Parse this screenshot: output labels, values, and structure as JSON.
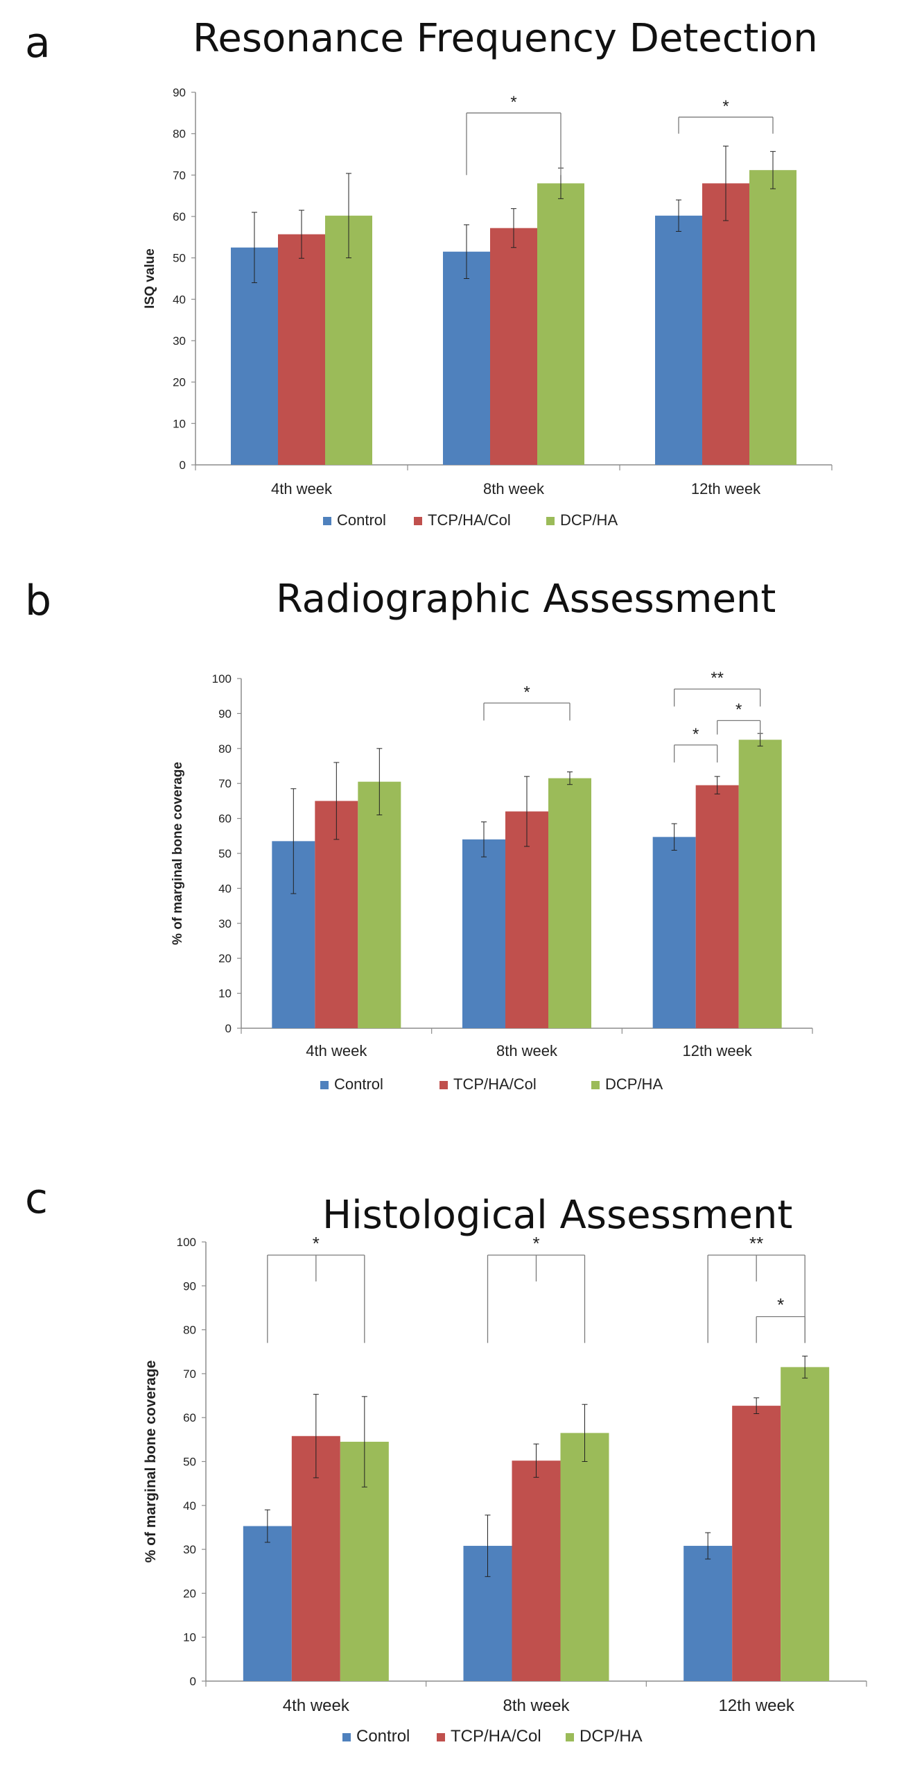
{
  "colors": {
    "Control": "#4F81BD",
    "TCP/HA/Col": "#C0504D",
    "DCP/HA": "#9BBB59"
  },
  "panels": [
    {
      "letter": "a",
      "title": "Resonance Frequency Detection",
      "chart_data": {
        "type": "bar",
        "title": "Resonance Frequency Detection",
        "xlabel": "",
        "ylabel": "ISQ value",
        "ylim": [
          0,
          90
        ],
        "yticks": [
          "0",
          "10",
          "20",
          "30",
          "40",
          "50",
          "60",
          "70",
          "80",
          "90"
        ],
        "categories": [
          "4th week",
          "8th week",
          "12th week"
        ],
        "series": [
          {
            "name": "Control",
            "values": [
              52.5,
              51.5,
              60.2
            ],
            "errors": [
              8.5,
              6.5,
              3.8
            ]
          },
          {
            "name": "TCP/HA/Col",
            "values": [
              55.7,
              57.2,
              68.0
            ],
            "errors": [
              5.8,
              4.7,
              9.0
            ]
          },
          {
            "name": "DCP/HA",
            "values": [
              60.2,
              68.0,
              71.2
            ],
            "errors": [
              10.2,
              3.7,
              4.5
            ]
          }
        ],
        "annotations": [
          {
            "label": "*",
            "category": 1,
            "from": 0,
            "to": 2,
            "level": 85,
            "drop_to": 70
          },
          {
            "label": "*",
            "category": 2,
            "from": 0,
            "to": 2,
            "level": 84,
            "drop_to": 80
          }
        ]
      }
    },
    {
      "letter": "b",
      "title": "Radiographic Assessment",
      "chart_data": {
        "type": "bar",
        "title": "Radiographic Assessment",
        "xlabel": "",
        "ylabel": "% of marginal bone coverage",
        "ylim": [
          0,
          100
        ],
        "yticks": [
          "0",
          "10",
          "20",
          "30",
          "40",
          "50",
          "60",
          "70",
          "80",
          "90",
          "100"
        ],
        "categories": [
          "4th week",
          "8th week",
          "12th week"
        ],
        "series": [
          {
            "name": "Control",
            "values": [
              53.5,
              54.0,
              54.7
            ],
            "errors": [
              15.0,
              5.0,
              3.8
            ]
          },
          {
            "name": "TCP/HA/Col",
            "values": [
              65.0,
              62.0,
              69.5
            ],
            "errors": [
              11.0,
              10.0,
              2.5
            ]
          },
          {
            "name": "DCP/HA",
            "values": [
              70.5,
              71.5,
              82.5
            ],
            "errors": [
              9.5,
              1.8,
              1.8
            ]
          }
        ],
        "annotations": [
          {
            "label": "*",
            "category": 1,
            "from": 0,
            "to": 2,
            "level": 93,
            "drop_to": 88
          },
          {
            "label": "**",
            "category": 2,
            "from": 0,
            "to": 2,
            "level": 97,
            "drop_to": 92
          },
          {
            "label": "*",
            "category": 2,
            "from": 1,
            "to": 2,
            "level": 88,
            "drop_to": 84
          },
          {
            "label": "*",
            "category": 2,
            "from": 0,
            "to": 1,
            "level": 81,
            "drop_to": 76
          }
        ]
      }
    },
    {
      "letter": "c",
      "title": "Histological Assessment",
      "chart_data": {
        "type": "bar",
        "title": "Histological Assessment",
        "xlabel": "",
        "ylabel": "% of marginal bone coverage",
        "ylim": [
          0,
          100
        ],
        "yticks": [
          "0",
          "10",
          "20",
          "30",
          "40",
          "50",
          "60",
          "70",
          "80",
          "90",
          "100"
        ],
        "categories": [
          "4th week",
          "8th week",
          "12th week"
        ],
        "series": [
          {
            "name": "Control",
            "values": [
              35.3,
              30.8,
              30.8
            ],
            "errors": [
              3.7,
              7.0,
              3.0
            ]
          },
          {
            "name": "TCP/HA/Col",
            "values": [
              55.8,
              50.2,
              62.7
            ],
            "errors": [
              9.5,
              3.8,
              1.8
            ]
          },
          {
            "name": "DCP/HA",
            "values": [
              54.5,
              56.5,
              71.5
            ],
            "errors": [
              10.3,
              6.5,
              2.5
            ]
          }
        ],
        "annotations": [
          {
            "label": "*",
            "category": 0,
            "from": 0,
            "to": 2,
            "level": 97,
            "drop_to": 77,
            "mid": true
          },
          {
            "label": "*",
            "category": 1,
            "from": 0,
            "to": 2,
            "level": 97,
            "drop_to": 77,
            "mid": true
          },
          {
            "label": "**",
            "category": 2,
            "from": 0,
            "to": 2,
            "level": 97,
            "drop_to": 77,
            "mid": true
          },
          {
            "label": "*",
            "category": 2,
            "from": 1,
            "to": 2,
            "level": 83,
            "drop_to": 77
          }
        ]
      }
    }
  ]
}
